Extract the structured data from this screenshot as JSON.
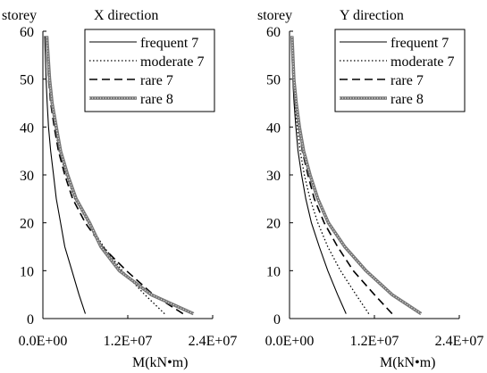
{
  "chart_data": [
    {
      "type": "line",
      "title": "X direction",
      "ylabel": "storey",
      "xlabel": "M(kN•m)",
      "xlim": [
        0,
        24000000
      ],
      "ylim": [
        0,
        60
      ],
      "x_ticks": [
        "0.0E+00",
        "1.2E+07",
        "2.4E+07"
      ],
      "y_ticks": [
        "0",
        "10",
        "20",
        "30",
        "40",
        "50",
        "60"
      ],
      "legend_position": "top-right",
      "series": [
        {
          "name": "frequent 7",
          "style": "solid",
          "x": [
            6000000,
            5100000,
            4100000,
            3100000,
            2500000,
            1900000,
            1500000,
            1100000,
            800000,
            600000,
            450000,
            250000
          ],
          "y": [
            1,
            5,
            10,
            15,
            20,
            25,
            30,
            35,
            40,
            45,
            50,
            59
          ]
        },
        {
          "name": "moderate 7",
          "style": "dotted",
          "x": [
            17200000,
            14400000,
            11200000,
            8600000,
            6400000,
            4500000,
            3300000,
            2300000,
            1700000,
            1200000,
            850000,
            500000
          ],
          "y": [
            1,
            5,
            10,
            15,
            20,
            25,
            30,
            35,
            40,
            45,
            50,
            59
          ]
        },
        {
          "name": "rare 7",
          "style": "dashed",
          "x": [
            19800000,
            15600000,
            11800000,
            8400000,
            6000000,
            4200000,
            3100000,
            2200000,
            1600000,
            1100000,
            800000,
            450000
          ],
          "y": [
            1,
            5,
            10,
            15,
            20,
            25,
            30,
            35,
            40,
            45,
            50,
            59
          ]
        },
        {
          "name": "rare 8",
          "style": "thick",
          "x": [
            21300000,
            15300000,
            10800000,
            8200000,
            6600000,
            4700000,
            3500000,
            2500000,
            1900000,
            1300000,
            950000,
            550000
          ],
          "y": [
            1,
            5,
            10,
            15,
            20,
            25,
            30,
            35,
            40,
            45,
            50,
            59
          ]
        }
      ]
    },
    {
      "type": "line",
      "title": "Y direction",
      "ylabel": "storey",
      "xlabel": "M(kN•m)",
      "xlim": [
        0,
        24000000
      ],
      "ylim": [
        0,
        60
      ],
      "x_ticks": [
        "0.0E+00",
        "1.2E+07",
        "2.4E+07"
      ],
      "y_ticks": [
        "0",
        "10",
        "20",
        "30",
        "40",
        "50",
        "60"
      ],
      "legend_position": "top-right",
      "series": [
        {
          "name": "frequent 7",
          "style": "solid",
          "x": [
            8000000,
            6800000,
            5400000,
            4200000,
            3100000,
            2300000,
            1700000,
            1200000,
            900000,
            650000,
            450000,
            250000
          ],
          "y": [
            1,
            5,
            10,
            15,
            20,
            25,
            30,
            35,
            40,
            45,
            50,
            59
          ]
        },
        {
          "name": "moderate 7",
          "style": "dotted",
          "x": [
            11200000,
            9400000,
            7200000,
            5400000,
            4000000,
            2900000,
            2100000,
            1500000,
            1100000,
            750000,
            500000,
            280000
          ],
          "y": [
            1,
            5,
            10,
            15,
            20,
            25,
            30,
            35,
            40,
            45,
            50,
            59
          ]
        },
        {
          "name": "rare 7",
          "style": "dashed",
          "x": [
            14500000,
            12000000,
            9000000,
            6800000,
            4900000,
            3500000,
            2600000,
            1800000,
            1300000,
            900000,
            600000,
            320000
          ],
          "y": [
            1,
            5,
            10,
            15,
            20,
            25,
            30,
            35,
            40,
            45,
            50,
            59
          ]
        },
        {
          "name": "rare 8",
          "style": "thick",
          "x": [
            18600000,
            14500000,
            10800000,
            7800000,
            5500000,
            4000000,
            2900000,
            2000000,
            1400000,
            950000,
            620000,
            350000
          ],
          "y": [
            1,
            5,
            10,
            15,
            20,
            25,
            30,
            35,
            40,
            45,
            50,
            59
          ]
        }
      ]
    }
  ]
}
